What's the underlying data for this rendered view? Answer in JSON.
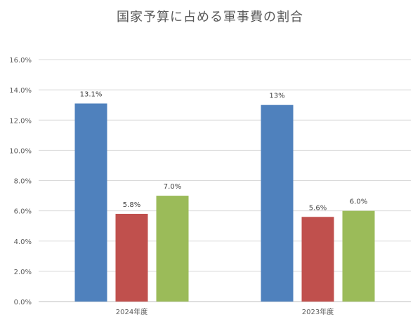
{
  "chart_data": {
    "type": "bar",
    "title": "国家予算に占める軍事費の割合",
    "categories": [
      "2024年度",
      "2023年度"
    ],
    "series": [
      {
        "values": [
          13.1,
          13.0
        ],
        "color": "#4F81BD",
        "labels": [
          "13.1%",
          "13%"
        ]
      },
      {
        "values": [
          5.8,
          5.6
        ],
        "color": "#C0504D",
        "labels": [
          "5.8%",
          "5.6%"
        ]
      },
      {
        "values": [
          7.0,
          6.0
        ],
        "color": "#9BBB59",
        "labels": [
          "7.0%",
          "6.0%"
        ]
      }
    ],
    "yticks": [
      "0.0%",
      "2.0%",
      "4.0%",
      "6.0%",
      "8.0%",
      "10.0%",
      "12.0%",
      "14.0%",
      "16.0%"
    ],
    "ylim": [
      0,
      16
    ],
    "grid": true,
    "legend": "none",
    "xlabel": "",
    "ylabel": ""
  }
}
